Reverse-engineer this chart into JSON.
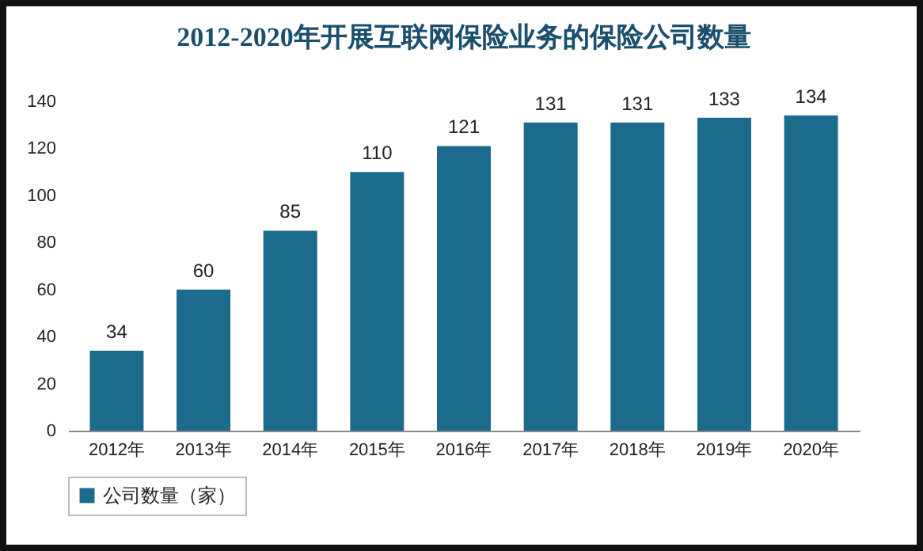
{
  "chart_data": {
    "type": "bar",
    "title": "2012-2020年开展互联网保险业务的保险公司数量",
    "categories": [
      "2012年",
      "2013年",
      "2014年",
      "2015年",
      "2016年",
      "2017年",
      "2018年",
      "2019年",
      "2020年"
    ],
    "series": [
      {
        "name": "公司数量（家）",
        "color": "#1c6a8c",
        "values": [
          34,
          60,
          85,
          110,
          121,
          131,
          131,
          133,
          134
        ]
      }
    ],
    "ylim": [
      0,
      140
    ],
    "yticks": [
      0,
      20,
      40,
      60,
      80,
      100,
      120,
      140
    ],
    "data_labels": true,
    "legend": "bottom",
    "grid": false
  }
}
